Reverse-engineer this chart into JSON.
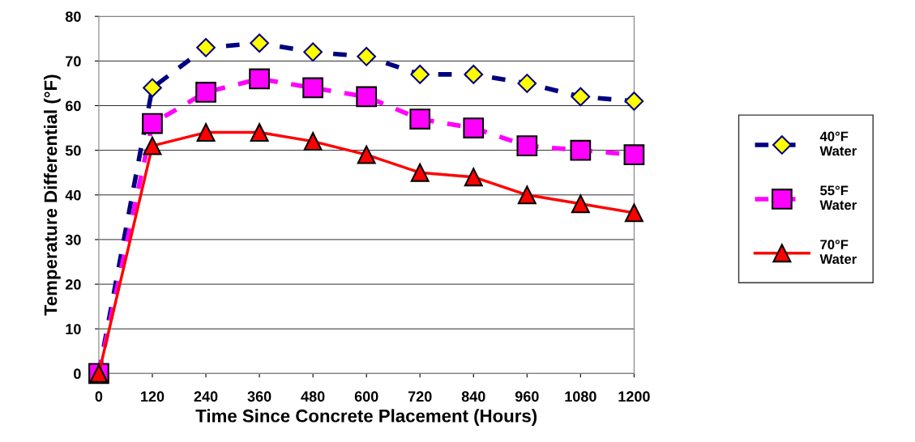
{
  "chart_data": {
    "type": "line",
    "xlabel": "Time Since Concrete Placement (Hours)",
    "ylabel": "Temperature Differential (°F)",
    "x": [
      0,
      120,
      240,
      360,
      480,
      600,
      720,
      840,
      960,
      1080,
      1200
    ],
    "series": [
      {
        "name": "40°F\nWater",
        "color": "#000080",
        "line_style": "dashed",
        "marker": "diamond",
        "values": [
          0,
          64,
          73,
          74,
          72,
          71,
          67,
          67,
          65,
          62,
          61
        ]
      },
      {
        "name": "55°F\nWater",
        "color": "#ff00ff",
        "line_style": "dashed",
        "marker": "square",
        "values": [
          0,
          56,
          63,
          66,
          64,
          62,
          57,
          55,
          51,
          50,
          49
        ]
      },
      {
        "name": "70°F\nWater",
        "color": "#ff0000",
        "line_style": "solid",
        "marker": "triangle",
        "values": [
          0,
          51,
          54,
          54,
          52,
          49,
          45,
          44,
          40,
          38,
          36
        ]
      }
    ],
    "xlim": [
      0,
      1200
    ],
    "xticks": [
      0,
      120,
      240,
      360,
      480,
      600,
      720,
      840,
      960,
      1080,
      1200
    ],
    "ylim": [
      0,
      80
    ],
    "yticks": [
      0,
      10,
      20,
      30,
      40,
      50,
      60,
      70,
      80
    ],
    "grid": "y",
    "legend": "right"
  }
}
